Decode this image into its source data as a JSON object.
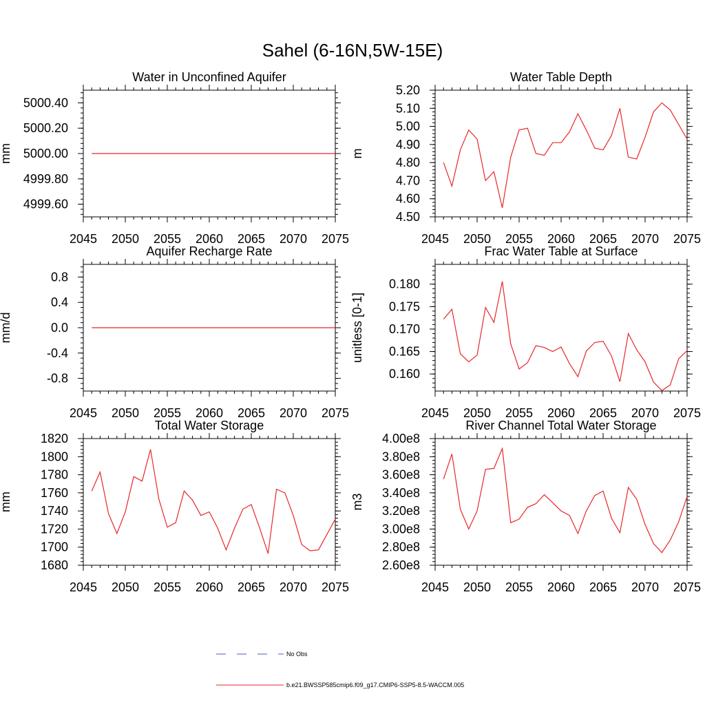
{
  "figure": {
    "title": "Sahel (6-16N,5W-15E)",
    "legend": [
      {
        "label": "No Obs",
        "color": "#4a5fb0",
        "dashed": true
      },
      {
        "label": "b.e21.BWSSP585cmip6.f09_g17.CMIP6-SSP5-8.5-WACCM.005",
        "color": "#e8262a",
        "dashed": false
      }
    ]
  },
  "chart_data": [
    {
      "type": "line",
      "title": "Water in Unconfined Aquifer",
      "ylabel": "mm",
      "xlim": [
        2045,
        2075
      ],
      "ylim": [
        4999.5,
        5000.5
      ],
      "xticks": [
        2045,
        2050,
        2055,
        2060,
        2065,
        2070,
        2075
      ],
      "yticks": [
        4999.6,
        4999.8,
        5000.0,
        5000.2,
        5000.4
      ],
      "yticklabels": [
        "4999.60",
        "4999.80",
        "5000.00",
        "5000.20",
        "5000.40"
      ],
      "yminor": 0.04,
      "series": [
        {
          "color": "#e8262a",
          "x": [
            2046,
            2047,
            2048,
            2049,
            2050,
            2051,
            2052,
            2053,
            2054,
            2055,
            2056,
            2057,
            2058,
            2059,
            2060,
            2061,
            2062,
            2063,
            2064,
            2065,
            2066,
            2067,
            2068,
            2069,
            2070,
            2071,
            2072,
            2073,
            2074,
            2075
          ],
          "values": [
            5000,
            5000,
            5000,
            5000,
            5000,
            5000,
            5000,
            5000,
            5000,
            5000,
            5000,
            5000,
            5000,
            5000,
            5000,
            5000,
            5000,
            5000,
            5000,
            5000,
            5000,
            5000,
            5000,
            5000,
            5000,
            5000,
            5000,
            5000,
            5000,
            5000
          ]
        }
      ]
    },
    {
      "type": "line",
      "title": "Water Table Depth",
      "ylabel": "m",
      "xlim": [
        2045,
        2075
      ],
      "ylim": [
        4.5,
        5.2
      ],
      "xticks": [
        2045,
        2050,
        2055,
        2060,
        2065,
        2070,
        2075
      ],
      "yticks": [
        4.5,
        4.6,
        4.7,
        4.8,
        4.9,
        5.0,
        5.1,
        5.2
      ],
      "yticklabels": [
        "4.50",
        "4.60",
        "4.70",
        "4.80",
        "4.90",
        "5.00",
        "5.10",
        "5.20"
      ],
      "yminor": 0.02,
      "series": [
        {
          "color": "#e8262a",
          "x": [
            2046,
            2047,
            2048,
            2049,
            2050,
            2051,
            2052,
            2053,
            2054,
            2055,
            2056,
            2057,
            2058,
            2059,
            2060,
            2061,
            2062,
            2063,
            2064,
            2065,
            2066,
            2067,
            2068,
            2069,
            2070,
            2071,
            2072,
            2073,
            2074,
            2075
          ],
          "values": [
            4.8,
            4.67,
            4.87,
            4.98,
            4.93,
            4.7,
            4.75,
            4.55,
            4.83,
            4.98,
            4.99,
            4.85,
            4.84,
            4.91,
            4.91,
            4.97,
            5.07,
            4.98,
            4.88,
            4.87,
            4.95,
            5.1,
            4.83,
            4.82,
            4.94,
            5.08,
            5.13,
            5.09,
            5.01,
            4.93
          ]
        }
      ]
    },
    {
      "type": "line",
      "title": "Aquifer Recharge Rate",
      "ylabel": "mm/d",
      "xlim": [
        2045,
        2075
      ],
      "ylim": [
        -1.0,
        1.0
      ],
      "xticks": [
        2045,
        2050,
        2055,
        2060,
        2065,
        2070,
        2075
      ],
      "yticks": [
        -0.8,
        -0.4,
        0.0,
        0.4,
        0.8
      ],
      "yticklabels": [
        "-0.8",
        "-0.4",
        "0.0",
        "0.4",
        "0.8"
      ],
      "yminor": 0.08,
      "series": [
        {
          "color": "#e8262a",
          "x": [
            2046,
            2047,
            2048,
            2049,
            2050,
            2051,
            2052,
            2053,
            2054,
            2055,
            2056,
            2057,
            2058,
            2059,
            2060,
            2061,
            2062,
            2063,
            2064,
            2065,
            2066,
            2067,
            2068,
            2069,
            2070,
            2071,
            2072,
            2073,
            2074,
            2075
          ],
          "values": [
            0,
            0,
            0,
            0,
            0,
            0,
            0,
            0,
            0,
            0,
            0,
            0,
            0,
            0,
            0,
            0,
            0,
            0,
            0,
            0,
            0,
            0,
            0,
            0,
            0,
            0,
            0,
            0,
            0,
            0
          ]
        }
      ]
    },
    {
      "type": "line",
      "title": "Frac Water Table at Surface",
      "ylabel": "unitless [0-1]",
      "xlim": [
        2045,
        2075
      ],
      "ylim": [
        0.1562,
        0.1844
      ],
      "xticks": [
        2045,
        2050,
        2055,
        2060,
        2065,
        2070,
        2075
      ],
      "yticks": [
        0.16,
        0.165,
        0.17,
        0.175,
        0.18
      ],
      "yticklabels": [
        "0.160",
        "0.165",
        "0.170",
        "0.175",
        "0.180"
      ],
      "yminor": 0.001,
      "series": [
        {
          "color": "#e8262a",
          "x": [
            2046,
            2047,
            2048,
            2049,
            2050,
            2051,
            2052,
            2053,
            2054,
            2055,
            2056,
            2057,
            2058,
            2059,
            2060,
            2061,
            2062,
            2063,
            2064,
            2065,
            2066,
            2067,
            2068,
            2069,
            2070,
            2071,
            2072,
            2073,
            2074,
            2075
          ],
          "values": [
            0.1722,
            0.1744,
            0.1645,
            0.1627,
            0.1642,
            0.1748,
            0.1715,
            0.1806,
            0.1667,
            0.1611,
            0.1625,
            0.1663,
            0.1659,
            0.165,
            0.166,
            0.1623,
            0.1594,
            0.1651,
            0.167,
            0.1673,
            0.164,
            0.1583,
            0.169,
            0.1654,
            0.1627,
            0.1582,
            0.1563,
            0.1576,
            0.1634,
            0.1652
          ]
        }
      ]
    },
    {
      "type": "line",
      "title": "Total Water Storage",
      "ylabel": "mm",
      "xlim": [
        2045,
        2075
      ],
      "ylim": [
        1680,
        1820
      ],
      "xticks": [
        2045,
        2050,
        2055,
        2060,
        2065,
        2070,
        2075
      ],
      "yticks": [
        1680,
        1700,
        1720,
        1740,
        1760,
        1780,
        1800,
        1820
      ],
      "yticklabels": [
        "1680",
        "1700",
        "1720",
        "1740",
        "1760",
        "1780",
        "1800",
        "1820"
      ],
      "yminor": 4,
      "series": [
        {
          "color": "#e8262a",
          "x": [
            2046,
            2047,
            2048,
            2049,
            2050,
            2051,
            2052,
            2053,
            2054,
            2055,
            2056,
            2057,
            2058,
            2059,
            2060,
            2061,
            2062,
            2063,
            2064,
            2065,
            2066,
            2067,
            2068,
            2069,
            2070,
            2071,
            2072,
            2073,
            2074,
            2075
          ],
          "values": [
            1762,
            1783,
            1737,
            1715,
            1739,
            1778,
            1773,
            1808,
            1753,
            1722,
            1727,
            1762,
            1752,
            1735,
            1739,
            1721,
            1697,
            1721,
            1742,
            1747,
            1721,
            1693,
            1764,
            1760,
            1735,
            1703,
            1696,
            1697,
            1714,
            1731
          ]
        }
      ]
    },
    {
      "type": "line",
      "title": "River Channel Total Water Storage",
      "ylabel": "m3",
      "xlim": [
        2045,
        2075
      ],
      "ylim": [
        260000000,
        400000000
      ],
      "xticks": [
        2045,
        2050,
        2055,
        2060,
        2065,
        2070,
        2075
      ],
      "yticks": [
        260000000,
        280000000,
        300000000,
        320000000,
        340000000,
        360000000,
        380000000,
        400000000
      ],
      "yticklabels": [
        "2.60e8",
        "2.80e8",
        "3.00e8",
        "3.20e8",
        "3.40e8",
        "3.60e8",
        "3.80e8",
        "4.00e8"
      ],
      "yminor": 4000000,
      "series": [
        {
          "color": "#e8262a",
          "x": [
            2046,
            2047,
            2048,
            2049,
            2050,
            2051,
            2052,
            2053,
            2054,
            2055,
            2056,
            2057,
            2058,
            2059,
            2060,
            2061,
            2062,
            2063,
            2064,
            2065,
            2066,
            2067,
            2068,
            2069,
            2070,
            2071,
            2072,
            2073,
            2074,
            2075
          ],
          "values": [
            355000000,
            383000000,
            322000000,
            300000000,
            320000000,
            366000000,
            367000000,
            389000000,
            307000000,
            311000000,
            324000000,
            328000000,
            338000000,
            329000000,
            320000000,
            315000000,
            295000000,
            320000000,
            337000000,
            342000000,
            312000000,
            296000000,
            346000000,
            333000000,
            305000000,
            284000000,
            274000000,
            288000000,
            308000000,
            336000000
          ]
        }
      ]
    }
  ]
}
